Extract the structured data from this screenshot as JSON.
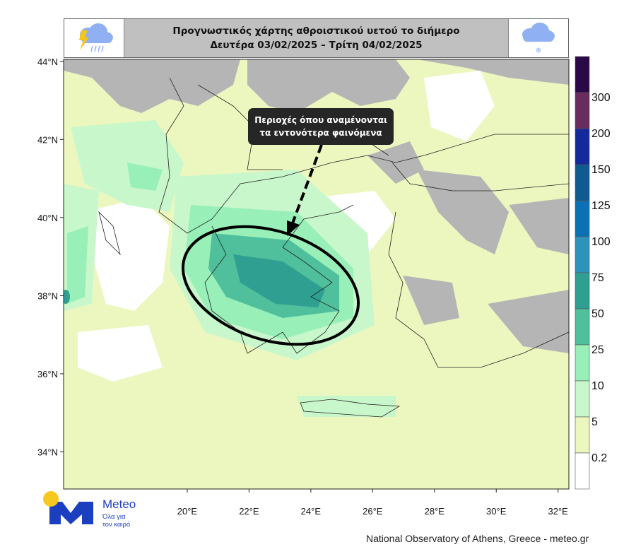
{
  "header": {
    "title_line1": "Προγνωστικός χάρτης αθροιστικού υετού το διήμερο",
    "title_line2": "Δευτέρα 03/02/2025 – Τρίτη 04/02/2025",
    "left_icon": "thunderstorm-rain-icon",
    "right_icon": "snow-cloud-icon"
  },
  "map": {
    "lat_ticks": [
      "44°N",
      "42°N",
      "40°N",
      "38°N",
      "36°N",
      "34°N"
    ],
    "lat_values": [
      44,
      42,
      40,
      38,
      36,
      34
    ],
    "lon_ticks": [
      "20°E",
      "22°E",
      "24°E",
      "26°E",
      "28°E",
      "30°E",
      "32°E"
    ],
    "lon_values": [
      20,
      22,
      24,
      26,
      28,
      30,
      32
    ],
    "lon_range": [
      16,
      32.35
    ],
    "lat_range": [
      33.05,
      44.05
    ],
    "no_data_color": "#b5b5b5",
    "annotation": {
      "line1": "Περιοχές όπου αναμένονται",
      "line2": "τα εντονότερα φαινόμενα",
      "shape": "ellipse",
      "arrow": "dashed"
    }
  },
  "colorbar": {
    "levels": [
      "300",
      "200",
      "150",
      "125",
      "100",
      "75",
      "50",
      "25",
      "10",
      "5",
      "0.2"
    ],
    "colors": [
      "#2a0a46",
      "#6a2c5c",
      "#142a9a",
      "#0f5a8f",
      "#0a72b4",
      "#2f92b9",
      "#2f9f91",
      "#4fbf9c",
      "#98efb8",
      "#c9f7cc",
      "#ecf7bf",
      "#ffffff"
    ]
  },
  "logo": {
    "name": "Meteo",
    "tagline_line1": "Όλα για",
    "tagline_line2": "τον καιρό"
  },
  "credit": "National Observatory of Athens, Greece - meteo.gr"
}
